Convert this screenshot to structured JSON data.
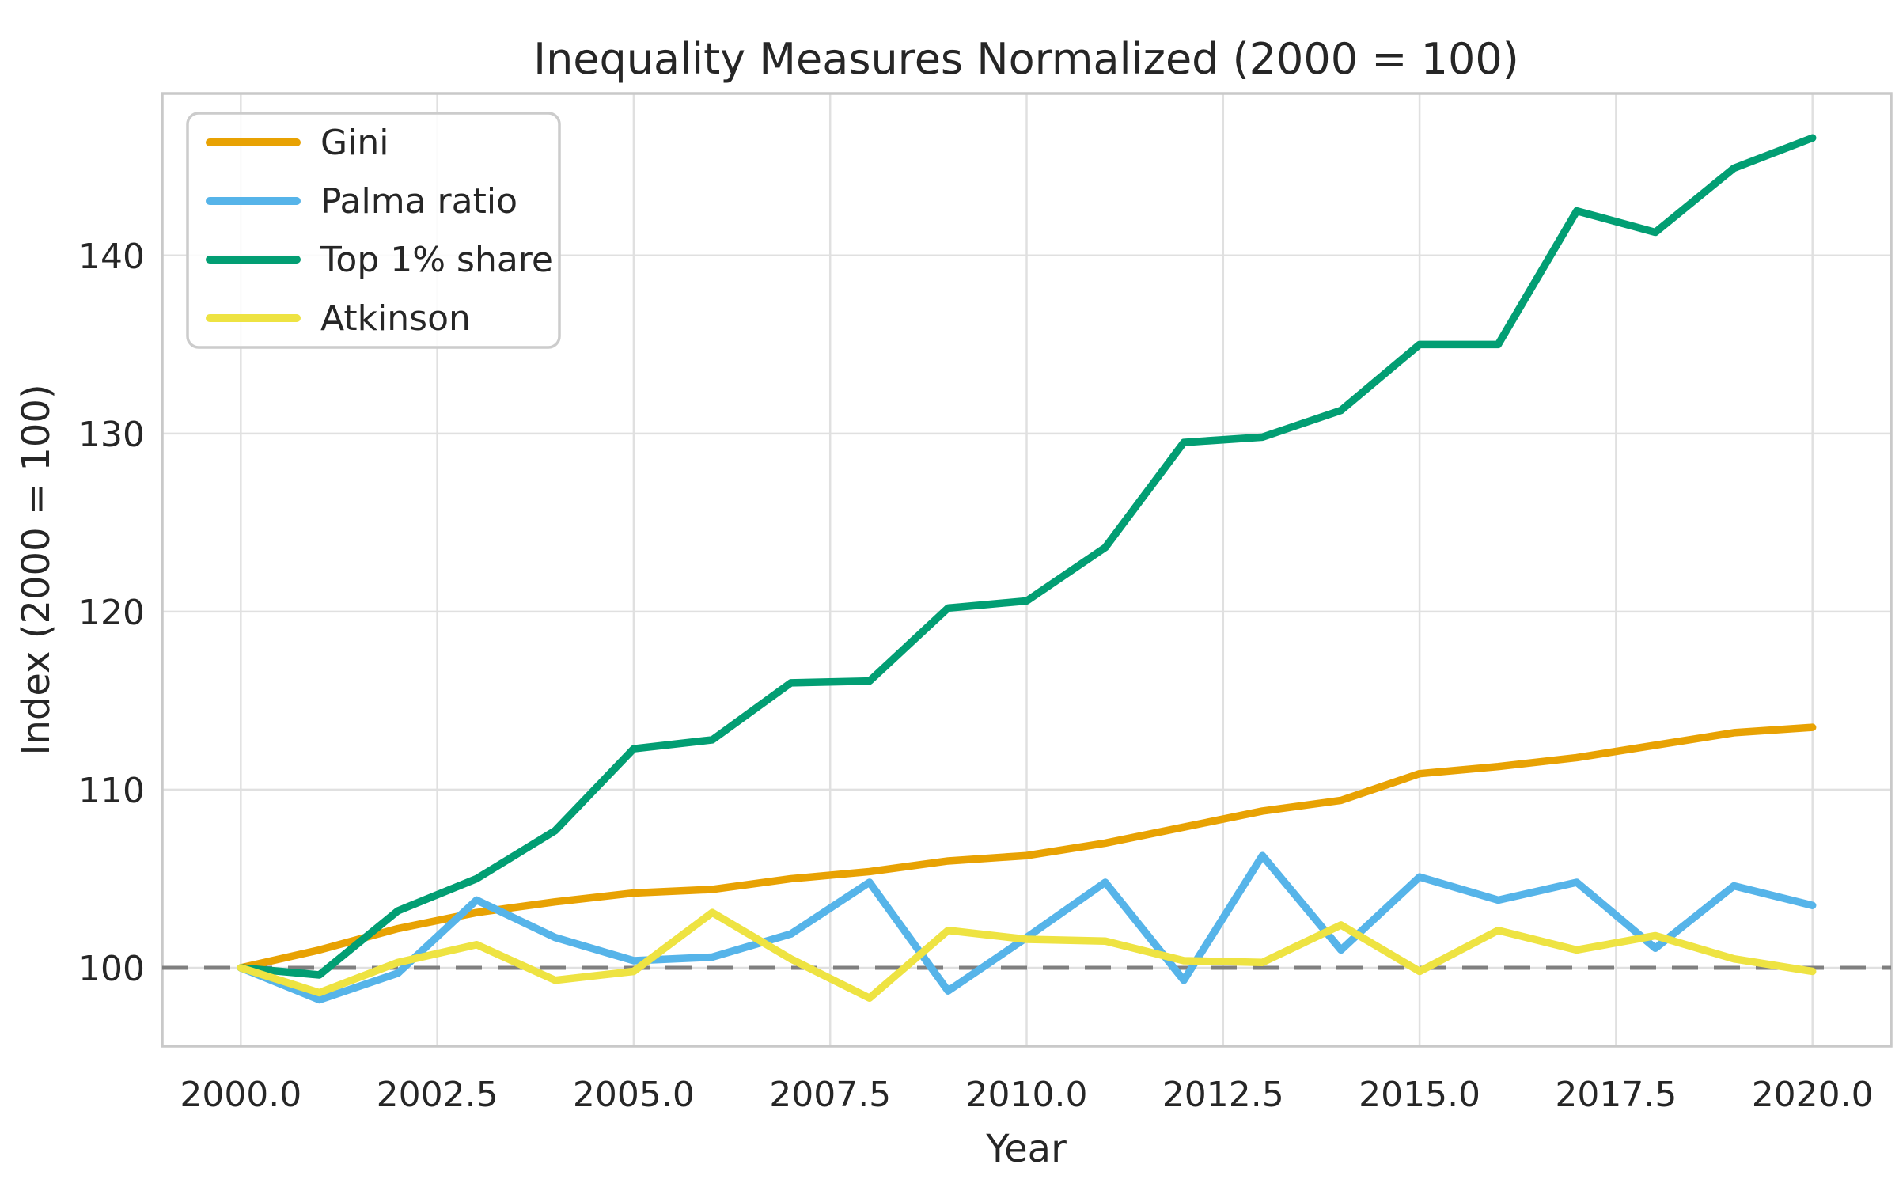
{
  "chart_data": {
    "type": "line",
    "title": "Inequality Measures Normalized (2000 = 100)",
    "xlabel": "Year",
    "ylabel": "Index (2000 = 100)",
    "x": [
      2000,
      2001,
      2002,
      2003,
      2004,
      2005,
      2006,
      2007,
      2008,
      2009,
      2010,
      2011,
      2012,
      2013,
      2014,
      2015,
      2016,
      2017,
      2018,
      2019,
      2020
    ],
    "series": [
      {
        "name": "Gini",
        "color": "#E8A203",
        "values": [
          100.0,
          101.0,
          102.2,
          103.1,
          103.7,
          104.2,
          104.4,
          105.0,
          105.4,
          106.0,
          106.3,
          107.0,
          107.9,
          108.8,
          109.4,
          110.9,
          111.3,
          111.8,
          112.5,
          113.2,
          113.5
        ]
      },
      {
        "name": "Palma ratio",
        "color": "#56B4E9",
        "values": [
          100.0,
          98.2,
          99.7,
          103.8,
          101.7,
          100.4,
          100.6,
          101.9,
          104.8,
          98.7,
          101.7,
          104.8,
          99.3,
          106.3,
          101.0,
          105.1,
          103.8,
          104.8,
          101.1,
          104.6,
          103.5
        ]
      },
      {
        "name": "Top 1% share",
        "color": "#029E73",
        "values": [
          100.0,
          99.6,
          103.2,
          105.0,
          107.7,
          112.3,
          112.8,
          116.0,
          116.1,
          120.2,
          120.6,
          123.6,
          129.5,
          129.8,
          131.3,
          135.0,
          135.0,
          142.5,
          141.3,
          144.9,
          146.6
        ]
      },
      {
        "name": "Atkinson",
        "color": "#EEE342",
        "values": [
          100.0,
          98.6,
          100.3,
          101.3,
          99.3,
          99.8,
          103.1,
          100.5,
          98.3,
          102.1,
          101.6,
          101.5,
          100.4,
          100.3,
          102.4,
          99.8,
          102.1,
          101.0,
          101.8,
          100.5,
          99.8
        ]
      }
    ],
    "xlim": [
      1999,
      2021
    ],
    "ylim": [
      95.6,
      149.1
    ],
    "xticks": {
      "values": [
        2000,
        2002.5,
        2005,
        2007.5,
        2010,
        2012.5,
        2015,
        2017.5,
        2020
      ],
      "labels": [
        "2000.0",
        "2002.5",
        "2005.0",
        "2007.5",
        "2010.0",
        "2012.5",
        "2015.0",
        "2017.5",
        "2020.0"
      ]
    },
    "yticks": {
      "values": [
        100,
        110,
        120,
        130,
        140
      ],
      "labels": [
        "100",
        "110",
        "120",
        "130",
        "140"
      ]
    },
    "grid": true,
    "legend_position": "upper left",
    "reference_line": {
      "y": 100,
      "style": "dashed",
      "color": "#7f7f7f"
    }
  },
  "colors": {
    "text": "#262626",
    "grid": "#e0e0e0",
    "spine": "#c9c9c9",
    "legend_border": "#cccccc",
    "legend_background": "rgba(255,255,255,0.85)",
    "background": "#ffffff"
  }
}
